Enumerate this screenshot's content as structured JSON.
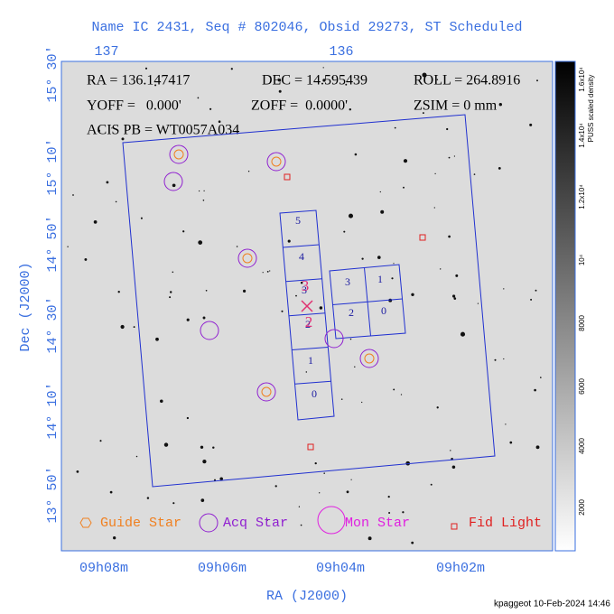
{
  "title": "Name IC 2431, Seq # 802046, Obsid 29273, ST Scheduled",
  "top_axis": {
    "ticks": [
      "137",
      "136"
    ]
  },
  "left_axis": {
    "label": "Dec (J2000)",
    "ticks": [
      "15° 30'",
      "15° 10'",
      "14° 50'",
      "14° 30'",
      "14° 10'",
      "13° 50'"
    ]
  },
  "bottom_axis": {
    "label": "RA (J2000)",
    "ticks": [
      "09h08m",
      "09h06m",
      "09h04m",
      "09h02m"
    ]
  },
  "colorbar": {
    "label": "PUSS scaled density",
    "ticks": [
      "2000",
      "4000",
      "6000",
      "8000",
      "10⁴",
      "1.2x10⁴",
      "1.4x10⁴",
      "1.6x10⁴"
    ]
  },
  "header": {
    "lines": [
      [
        "RA = 136.147417",
        "DEC = 14.595439",
        "ROLL = 264.8916"
      ],
      [
        "YOFF =   0.000'",
        "ZOFF =  0.0000'",
        "ZSIM = 0 mm"
      ],
      [
        "ACIS PB = WT0057A034"
      ]
    ]
  },
  "chips": {
    "i_array": [
      "5",
      "4",
      "3",
      "2",
      "1",
      "0"
    ],
    "s_array": [
      "3",
      "1",
      "2",
      "0"
    ]
  },
  "markers": [
    "3",
    "2"
  ],
  "legend": [
    "Guide Star",
    "Acq Star",
    "Mon Star",
    "Fid Light"
  ],
  "footer": "kpaggeot 10-Feb-2024 14:46"
}
